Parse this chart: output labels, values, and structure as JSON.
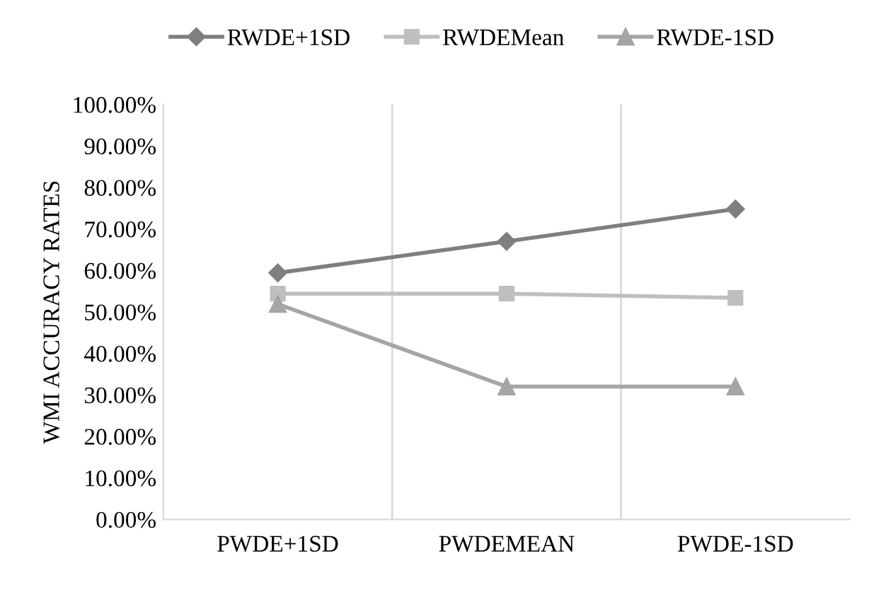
{
  "chart_data": {
    "type": "line",
    "ylabel": "WMI ACCURACY RATES",
    "categories": [
      "PWDE+1SD",
      "PWDEMEAN",
      "PWDE-1SD"
    ],
    "series": [
      {
        "name": "RWDE+1SD",
        "color": "#7f7f7f",
        "marker": "diamond",
        "values": [
          59.4,
          67.0,
          74.8
        ]
      },
      {
        "name": "RWDEMean",
        "color": "#bfbfbf",
        "marker": "square",
        "values": [
          54.4,
          54.4,
          53.4
        ]
      },
      {
        "name": "RWDE-1SD",
        "color": "#a5a5a5",
        "marker": "triangle",
        "values": [
          51.9,
          32.0,
          32.0
        ]
      }
    ],
    "ylim": [
      0,
      100
    ],
    "yticks": [
      {
        "value": 0,
        "label": "0.00%"
      },
      {
        "value": 10,
        "label": "10.00%"
      },
      {
        "value": 20,
        "label": "20.00%"
      },
      {
        "value": 30,
        "label": "30.00%"
      },
      {
        "value": 40,
        "label": "40.00%"
      },
      {
        "value": 50,
        "label": "50.00%"
      },
      {
        "value": 60,
        "label": "60.00%"
      },
      {
        "value": 70,
        "label": "70.00%"
      },
      {
        "value": 80,
        "label": "80.00%"
      },
      {
        "value": 90,
        "label": "90.00%"
      },
      {
        "value": 100,
        "label": "100.00%"
      }
    ],
    "grid": "x",
    "legend": "top",
    "line_style": "solid"
  }
}
